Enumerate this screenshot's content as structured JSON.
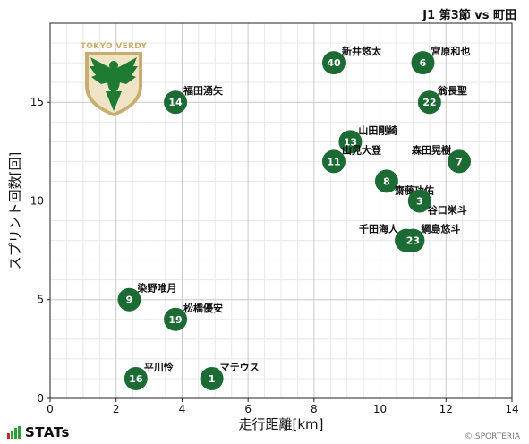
{
  "header": {
    "title": "J1 第3節 vs 町田"
  },
  "brand": {
    "label": "STATs",
    "bar_colors": [
      "#d0202a",
      "#2e9e3a",
      "#2e9e3a",
      "#2e9e3a"
    ]
  },
  "footer": {
    "copyright": "© SPORTERIA"
  },
  "crest": {
    "text": "TOKYO VERDY",
    "icon": "tokyo-verdy-eagle-crest",
    "colors": {
      "gold": "#c8ad6e",
      "green": "#1f7a32"
    }
  },
  "colors": {
    "marker": "#1c6b34",
    "marker_text": "#ffffff",
    "grid_major": "#c8c8c8",
    "grid_minor": "#e8e8e8"
  },
  "chart_data": {
    "type": "scatter",
    "title": "J1 第3節 vs 町田",
    "xlabel": "走行距離[km]",
    "ylabel": "スプリント回数[回]",
    "xlim": [
      0,
      14
    ],
    "ylim": [
      0,
      19
    ],
    "xticks": [
      0,
      2,
      4,
      6,
      8,
      10,
      12,
      14
    ],
    "yticks": [
      0,
      5,
      10,
      15
    ],
    "grid": true,
    "points": [
      {
        "number": "40",
        "name": "新井悠太",
        "x": 8.6,
        "y": 17,
        "label_pos": "upper-right"
      },
      {
        "number": "6",
        "name": "宮原和也",
        "x": 11.3,
        "y": 17,
        "label_pos": "upper-right"
      },
      {
        "number": "14",
        "name": "福田湧矢",
        "x": 3.8,
        "y": 15,
        "label_pos": "upper-right"
      },
      {
        "number": "22",
        "name": "翁長聖",
        "x": 11.5,
        "y": 15,
        "label_pos": "upper-right"
      },
      {
        "number": "13",
        "name": "山田剛綺",
        "x": 9.1,
        "y": 13,
        "label_pos": "upper-right"
      },
      {
        "number": "11",
        "name": "山見大登",
        "x": 8.6,
        "y": 12,
        "label_pos": "upper-right"
      },
      {
        "number": "7",
        "name": "森田晃樹",
        "x": 12.4,
        "y": 12,
        "label_pos": "upper-left"
      },
      {
        "number": "8",
        "name": "齋藤功佑",
        "x": 10.2,
        "y": 11,
        "label_pos": "lower-right"
      },
      {
        "number": "3",
        "name": "谷口栄斗",
        "x": 11.2,
        "y": 10,
        "label_pos": "lower-right"
      },
      {
        "number": "5",
        "name": "千田海人",
        "x": 10.8,
        "y": 8,
        "label_pos": "upper-left"
      },
      {
        "number": "23",
        "name": "綱島悠斗",
        "x": 11.0,
        "y": 8,
        "label_pos": "upper-right"
      },
      {
        "number": "9",
        "name": "染野唯月",
        "x": 2.4,
        "y": 5,
        "label_pos": "upper-right"
      },
      {
        "number": "19",
        "name": "松橋優安",
        "x": 3.8,
        "y": 4,
        "label_pos": "upper-right"
      },
      {
        "number": "16",
        "name": "平川怜",
        "x": 2.6,
        "y": 1,
        "label_pos": "upper-right"
      },
      {
        "number": "1",
        "name": "マテウス",
        "x": 4.9,
        "y": 1,
        "label_pos": "upper-right"
      }
    ]
  }
}
